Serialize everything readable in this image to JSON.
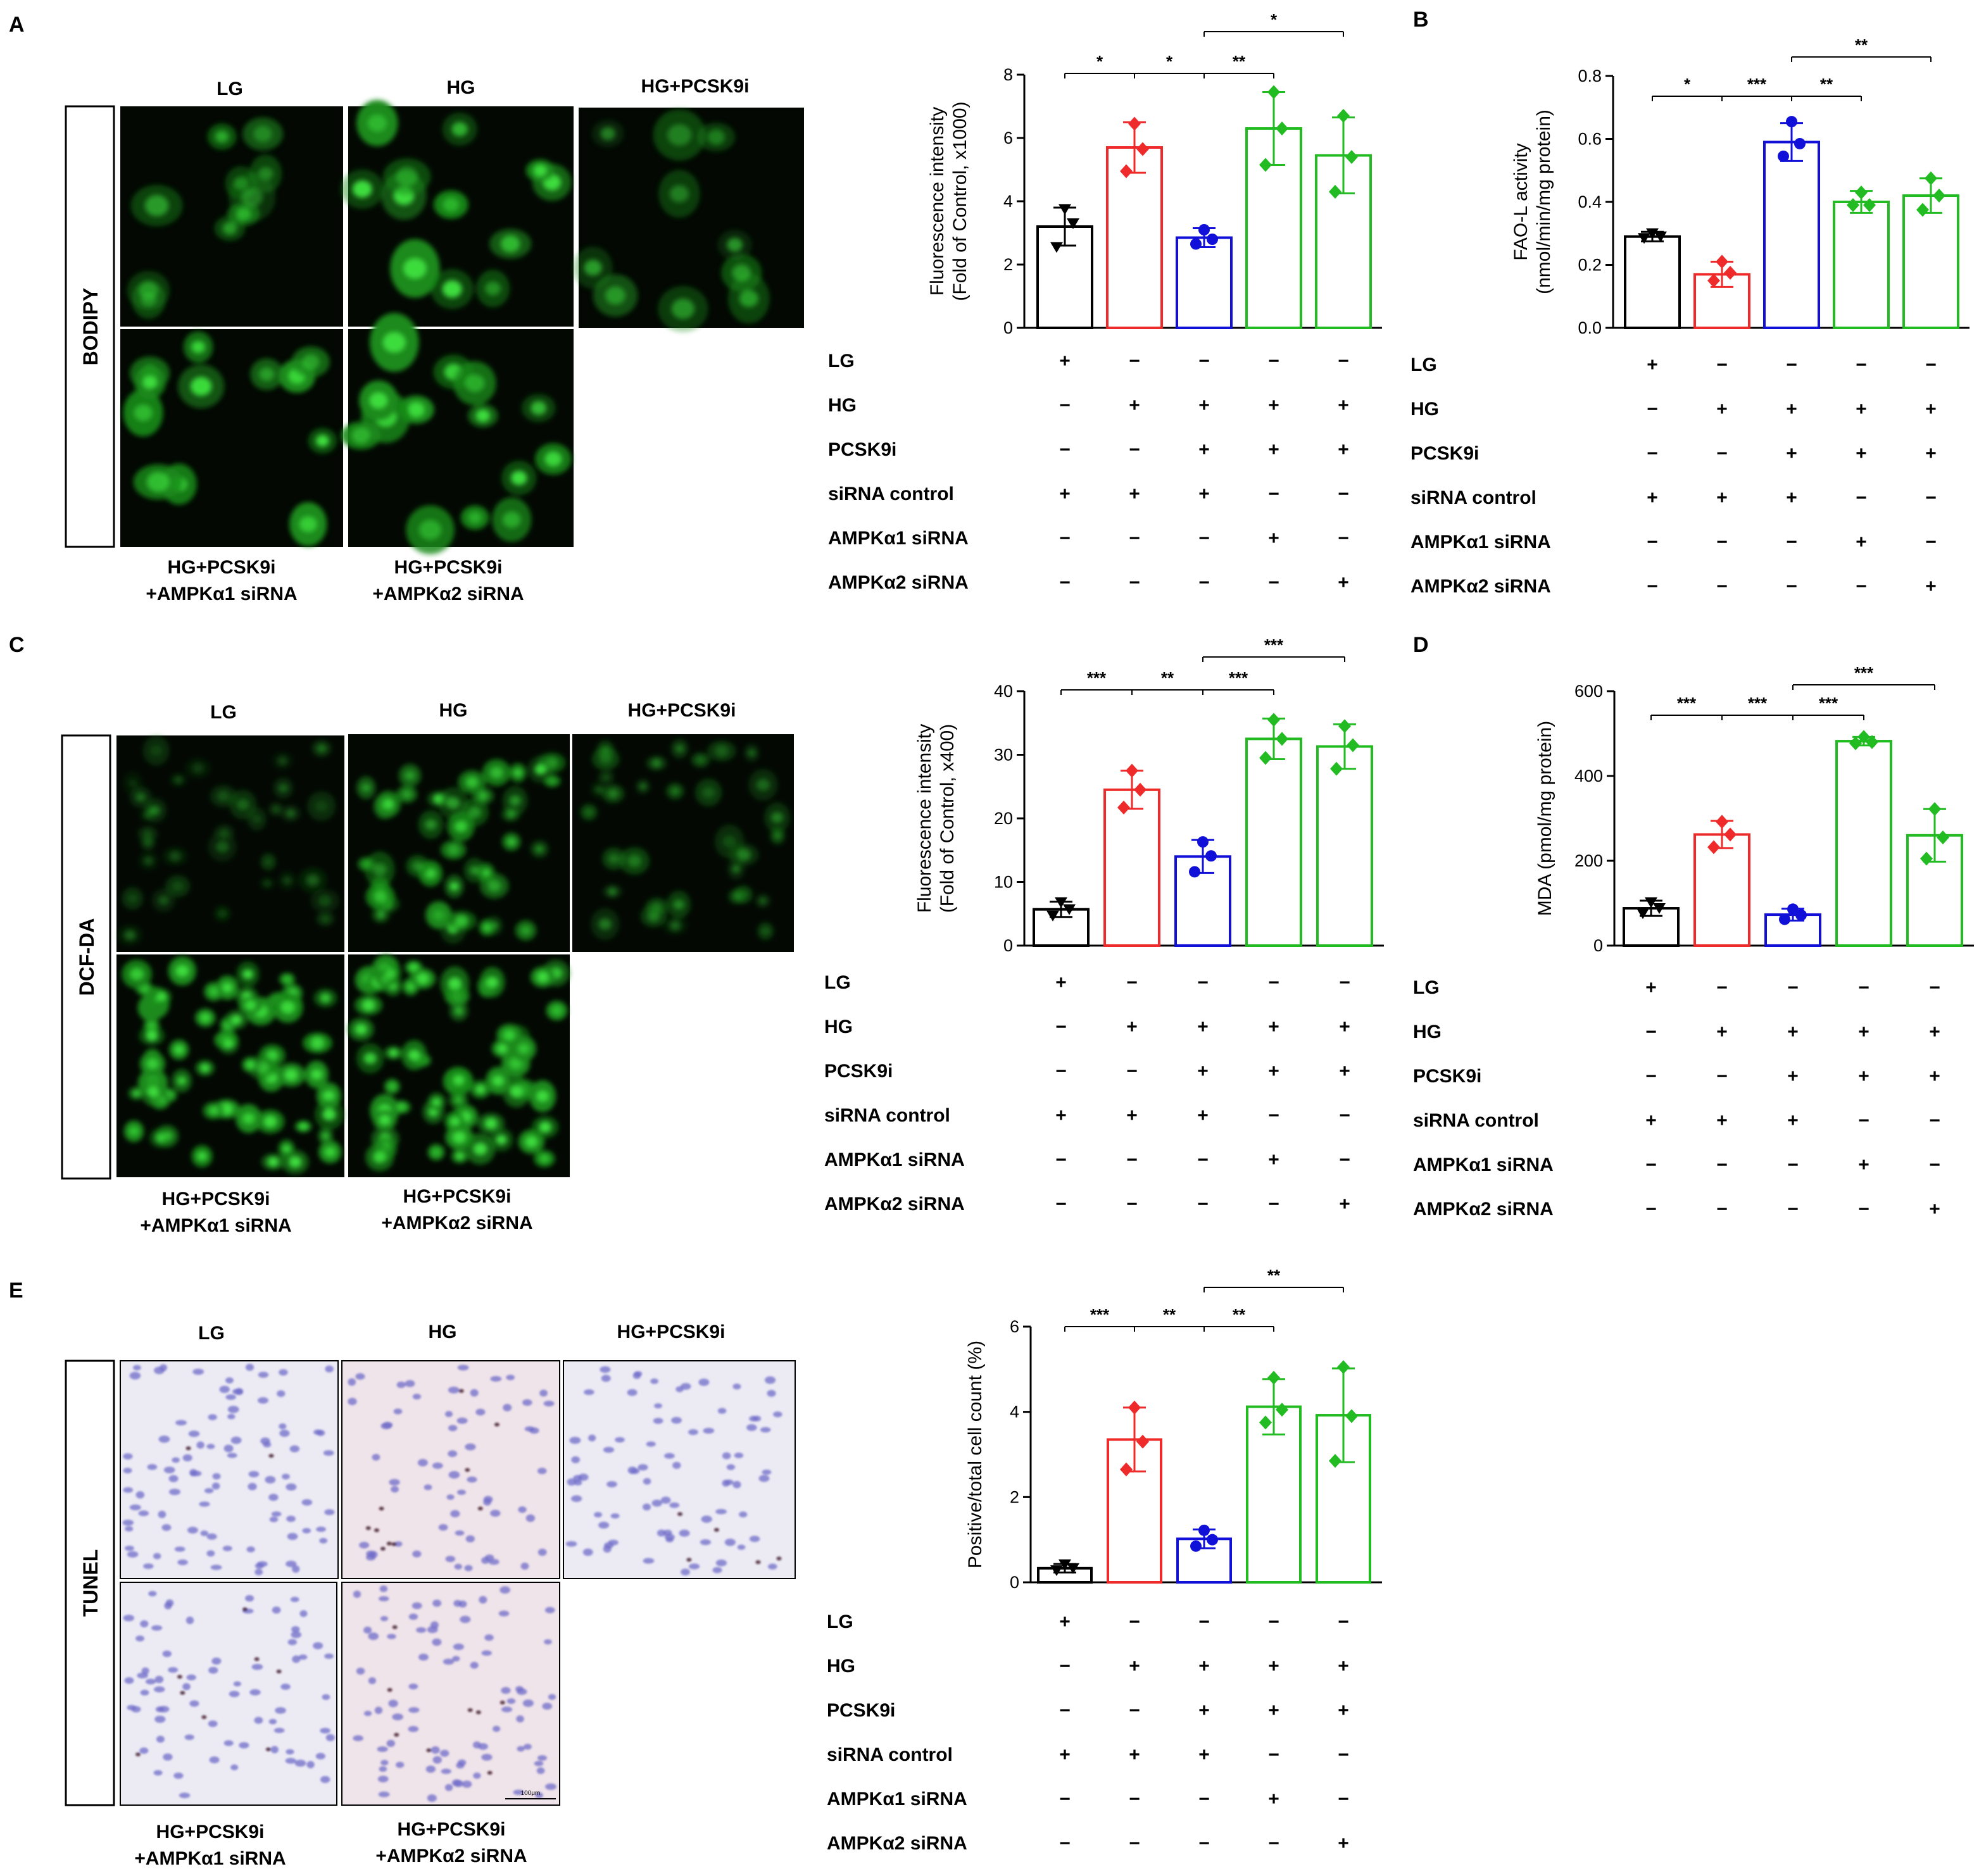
{
  "panels": {
    "a": {
      "letter": "A",
      "stain": "BODIPY"
    },
    "b": {
      "letter": "B"
    },
    "c": {
      "letter": "C",
      "stain": "DCF-DA"
    },
    "d": {
      "letter": "D"
    },
    "e": {
      "letter": "E",
      "stain": "TUNEL"
    }
  },
  "image_labels": {
    "lg": "LG",
    "hg": "HG",
    "hg_pcsk9i": "HG+PCSK9i",
    "a1_line1": "HG+PCSK9i",
    "a1_line2": "+AMPKα1 siRNA",
    "a2_line1": "HG+PCSK9i",
    "a2_line2": "+AMPKα2 siRNA"
  },
  "scale_bar": "100μm",
  "treatment_table": {
    "rows": [
      "LG",
      "HG",
      "PCSK9i",
      "siRNA control",
      "AMPKα1 siRNA",
      "AMPKα2 siRNA"
    ],
    "signs": [
      [
        "+",
        "−",
        "−",
        "−",
        "−"
      ],
      [
        "−",
        "+",
        "+",
        "+",
        "+"
      ],
      [
        "−",
        "−",
        "+",
        "+",
        "+"
      ],
      [
        "+",
        "+",
        "+",
        "−",
        "−"
      ],
      [
        "−",
        "−",
        "−",
        "+",
        "−"
      ],
      [
        "−",
        "−",
        "−",
        "−",
        "+"
      ]
    ]
  },
  "colors": {
    "group1": "#000000",
    "group2": "#ee2a2a",
    "group3": "#1010d8",
    "group4": "#22bb22",
    "group5": "#22bb22"
  },
  "chart_data": [
    {
      "panel": "A",
      "type": "bar",
      "ylabel": [
        "Fluorescence intensity",
        "(Fold of Control, x1000)"
      ],
      "ylim": [
        0,
        8
      ],
      "yticks": [
        0,
        2,
        4,
        6,
        8
      ],
      "values": [
        3.2,
        5.7,
        2.85,
        6.3,
        5.45
      ],
      "errors": [
        0.6,
        0.8,
        0.3,
        1.15,
        1.2
      ],
      "points": [
        [
          3.75,
          2.55,
          3.3
        ],
        [
          6.45,
          4.95,
          5.65
        ],
        [
          3.1,
          2.65,
          2.8
        ],
        [
          7.45,
          5.15,
          6.3
        ],
        [
          6.7,
          4.3,
          5.4
        ]
      ],
      "significance": [
        {
          "from": 1,
          "to": 2,
          "label": "*"
        },
        {
          "from": 2,
          "to": 3,
          "label": "*"
        },
        {
          "from": 3,
          "to": 4,
          "label": "**"
        },
        {
          "from": 3,
          "to": 5,
          "label": "*"
        }
      ]
    },
    {
      "panel": "B",
      "type": "bar",
      "ylabel": [
        "FAO-L activity",
        "(nmol/min/mg protein)"
      ],
      "ylim": [
        0,
        0.8
      ],
      "yticks": [
        "0.0",
        "0.2",
        "0.4",
        "0.6",
        "0.8"
      ],
      "values": [
        0.29,
        0.17,
        0.59,
        0.4,
        0.42
      ],
      "errors": [
        0.015,
        0.04,
        0.06,
        0.035,
        0.055
      ],
      "points": [
        [
          0.3,
          0.285,
          0.29
        ],
        [
          0.21,
          0.15,
          0.175
        ],
        [
          0.655,
          0.545,
          0.585
        ],
        [
          0.43,
          0.39,
          0.39
        ],
        [
          0.475,
          0.375,
          0.42
        ]
      ],
      "significance": [
        {
          "from": 1,
          "to": 2,
          "label": "*"
        },
        {
          "from": 2,
          "to": 3,
          "label": "***"
        },
        {
          "from": 3,
          "to": 4,
          "label": "**"
        },
        {
          "from": 3,
          "to": 5,
          "label": "**"
        }
      ]
    },
    {
      "panel": "C",
      "type": "bar",
      "ylabel": [
        "Fluorescence intensity",
        "(Fold of Control, x400)"
      ],
      "ylim": [
        0,
        40
      ],
      "yticks": [
        0,
        10,
        20,
        30,
        40
      ],
      "values": [
        5.7,
        24.5,
        14.0,
        32.5,
        31.3
      ],
      "errors": [
        1.2,
        3.0,
        2.6,
        3.2,
        3.5
      ],
      "points": [
        [
          6.8,
          4.7,
          5.7
        ],
        [
          27.5,
          21.7,
          24.5
        ],
        [
          16.3,
          11.6,
          14.1
        ],
        [
          35.5,
          29.5,
          32.5
        ],
        [
          34.5,
          27.8,
          31.5
        ]
      ],
      "significance": [
        {
          "from": 1,
          "to": 2,
          "label": "***"
        },
        {
          "from": 2,
          "to": 3,
          "label": "**"
        },
        {
          "from": 3,
          "to": 4,
          "label": "***"
        },
        {
          "from": 3,
          "to": 5,
          "label": "***"
        }
      ]
    },
    {
      "panel": "D",
      "type": "bar",
      "ylabel": [
        "MDA (pmol/mg protein)"
      ],
      "ylim": [
        0,
        600
      ],
      "yticks": [
        0,
        200,
        400,
        600
      ],
      "values": [
        88,
        262,
        73,
        482,
        260
      ],
      "errors": [
        18,
        32,
        14,
        10,
        62
      ],
      "points": [
        [
          102,
          76,
          88
        ],
        [
          292,
          232,
          262
        ],
        [
          86,
          62,
          72
        ],
        [
          492,
          477,
          480
        ],
        [
          322,
          205,
          255
        ]
      ],
      "significance": [
        {
          "from": 1,
          "to": 2,
          "label": "***"
        },
        {
          "from": 2,
          "to": 3,
          "label": "***"
        },
        {
          "from": 3,
          "to": 4,
          "label": "***"
        },
        {
          "from": 3,
          "to": 5,
          "label": "***"
        }
      ]
    },
    {
      "panel": "E",
      "type": "bar",
      "ylabel": [
        "Positive/total cell count (%)"
      ],
      "ylim": [
        0,
        6
      ],
      "yticks": [
        0,
        2,
        4,
        6
      ],
      "values": [
        0.33,
        3.35,
        1.02,
        4.12,
        3.92
      ],
      "errors": [
        0.1,
        0.75,
        0.22,
        0.65,
        1.1
      ],
      "points": [
        [
          0.42,
          0.28,
          0.33
        ],
        [
          4.1,
          2.65,
          3.3
        ],
        [
          1.22,
          0.85,
          1.0
        ],
        [
          4.8,
          3.75,
          4.05
        ],
        [
          5.05,
          2.85,
          3.9
        ]
      ],
      "significance": [
        {
          "from": 1,
          "to": 2,
          "label": "***"
        },
        {
          "from": 2,
          "to": 3,
          "label": "**"
        },
        {
          "from": 3,
          "to": 4,
          "label": "**"
        },
        {
          "from": 3,
          "to": 5,
          "label": "**"
        }
      ]
    }
  ]
}
